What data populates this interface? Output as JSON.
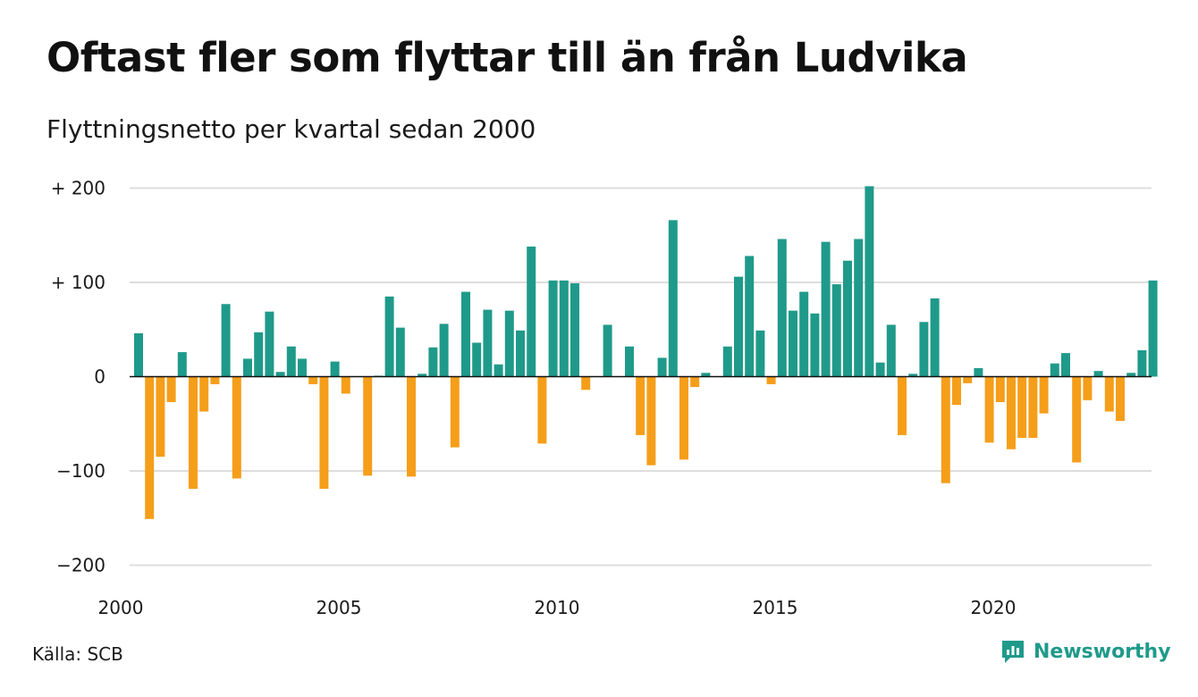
{
  "title": "Oftast fler som flyttar till än från Ludvika",
  "subtitle": "Flyttningsnetto per kvartal sedan 2000",
  "source": "Källa: SCB",
  "brand": {
    "name": "Newsworthy",
    "icon": "newsworthy-chart-bubble-icon"
  },
  "colors": {
    "positive": "#1f9a8a",
    "negative": "#f59e1a",
    "grid": "#dddddd",
    "zero_line": "#111111"
  },
  "chart_data": {
    "type": "bar",
    "x_start_year": 2000,
    "periods_per_year": 4,
    "x_ticks": [
      "2000",
      "2005",
      "2010",
      "2015",
      "2020"
    ],
    "y_ticks": [
      {
        "value": 200,
        "label": "+ 200"
      },
      {
        "value": 100,
        "label": "+ 100"
      },
      {
        "value": 0,
        "label": "0"
      },
      {
        "value": -100,
        "label": "−100"
      },
      {
        "value": -200,
        "label": "−200"
      }
    ],
    "ylim": [
      -200,
      200
    ],
    "grid": true,
    "values": [
      46,
      -151,
      -85,
      -27,
      26,
      -119,
      -37,
      -8,
      77,
      -108,
      19,
      47,
      69,
      5,
      32,
      19,
      -8,
      -119,
      16,
      -18,
      0,
      -105,
      1,
      85,
      52,
      -106,
      3,
      31,
      56,
      -75,
      90,
      36,
      71,
      13,
      70,
      49,
      138,
      -71,
      102,
      102,
      99,
      -14,
      0,
      55,
      0,
      32,
      -62,
      -94,
      20,
      166,
      -88,
      -11,
      4,
      0,
      32,
      106,
      128,
      49,
      -8,
      146,
      70,
      90,
      67,
      143,
      98,
      123,
      146,
      202,
      15,
      55,
      -62,
      3,
      58,
      83,
      -113,
      -30,
      -7,
      9,
      -70,
      -27,
      -77,
      -65,
      -65,
      -39,
      14,
      25,
      -91,
      -25,
      6,
      -37,
      -47,
      4,
      28,
      102
    ]
  }
}
